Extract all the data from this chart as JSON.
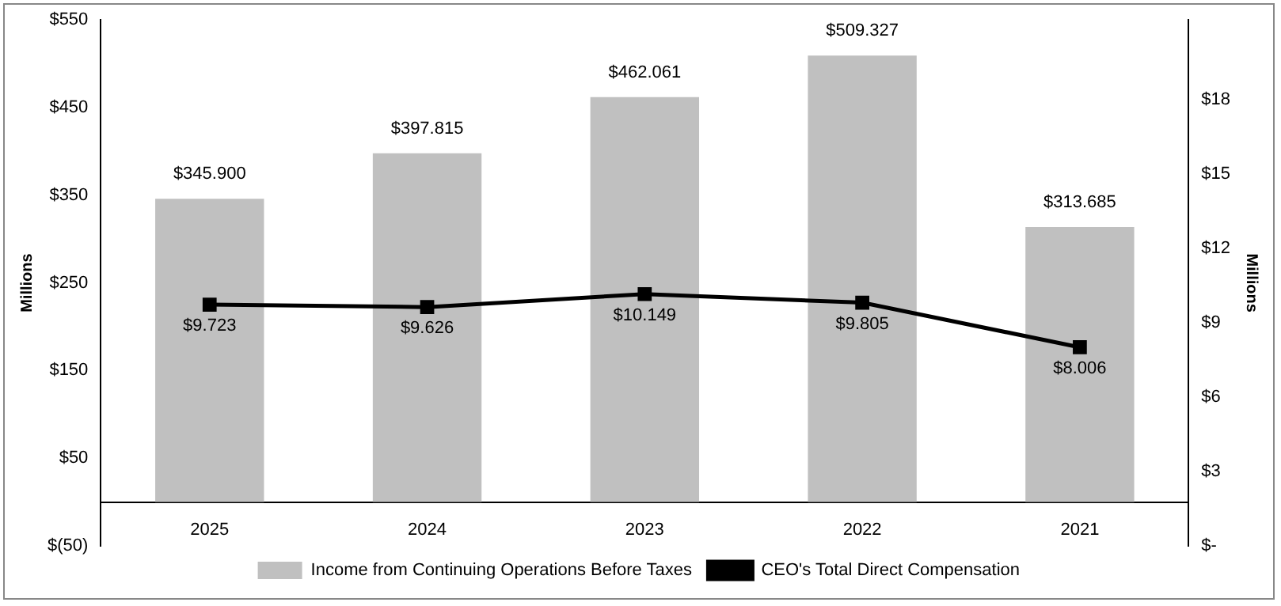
{
  "chart_data": {
    "type": "bar",
    "ylabel": "Millions",
    "y2label": "Millions",
    "categories": [
      "2025",
      "2024",
      "2023",
      "2022",
      "2021"
    ],
    "series": [
      {
        "name": "Income from Continuing Operations Before Taxes",
        "color": "#c0c0c0",
        "values": [
          345.9,
          397.815,
          462.061,
          509.327,
          313.685
        ],
        "value_labels": [
          "$345.900",
          "$397.815",
          "$462.061",
          "$509.327",
          "$313.685"
        ]
      },
      {
        "name": "CEO's Total Direct Compensation",
        "type": "line",
        "axis": "y2",
        "color": "#000000",
        "marker": "square",
        "values": [
          9.723,
          9.626,
          10.149,
          9.805,
          8.006
        ],
        "value_labels": [
          "$9.723",
          "$9.626",
          "$10.149",
          "$9.805",
          "$8.006"
        ]
      }
    ],
    "ylim": [
      -50,
      550
    ],
    "yticks": [
      {
        "value": -50,
        "label": "$(50)"
      },
      {
        "value": 50,
        "label": "$50"
      },
      {
        "value": 150,
        "label": "$150"
      },
      {
        "value": 250,
        "label": "$250"
      },
      {
        "value": 350,
        "label": "$350"
      },
      {
        "value": 450,
        "label": "$450"
      },
      {
        "value": 550,
        "label": "$550"
      }
    ],
    "y2lim": [
      0,
      21.2
    ],
    "y2ticks": [
      {
        "value": 0,
        "label": "$-"
      },
      {
        "value": 3,
        "label": "$3"
      },
      {
        "value": 6,
        "label": "$6"
      },
      {
        "value": 9,
        "label": "$9"
      },
      {
        "value": 12,
        "label": "$12"
      },
      {
        "value": 15,
        "label": "$15"
      },
      {
        "value": 18,
        "label": "$18"
      }
    ],
    "grid": false,
    "legend": "bottom"
  }
}
